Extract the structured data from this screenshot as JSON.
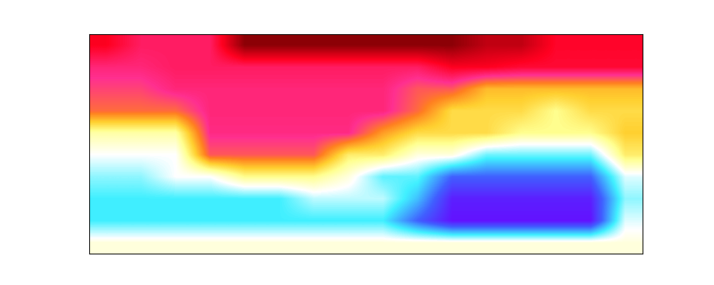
{
  "chart_data": {
    "type": "heatmap",
    "tick_labels": false,
    "cells": [
      [
        0.86,
        0.8,
        0.8,
        0.8,
        0.97,
        0.97,
        0.97,
        0.97,
        0.97,
        0.97,
        0.97,
        0.92,
        0.92,
        0.85,
        0.85,
        0.85
      ],
      [
        0.78,
        0.78,
        0.8,
        0.8,
        0.8,
        0.8,
        0.8,
        0.8,
        0.8,
        0.8,
        0.86,
        0.86,
        0.84,
        0.84,
        0.84,
        0.84
      ],
      [
        0.74,
        0.74,
        0.78,
        0.78,
        0.78,
        0.78,
        0.78,
        0.78,
        0.78,
        0.72,
        0.72,
        0.62,
        0.62,
        0.62,
        0.62,
        0.62
      ],
      [
        0.7,
        0.7,
        0.7,
        0.78,
        0.78,
        0.78,
        0.78,
        0.78,
        0.78,
        0.7,
        0.58,
        0.58,
        0.58,
        0.52,
        0.58,
        0.58
      ],
      [
        0.5,
        0.5,
        0.5,
        0.77,
        0.77,
        0.77,
        0.77,
        0.77,
        0.65,
        0.58,
        0.58,
        0.58,
        0.52,
        0.52,
        0.52,
        0.6
      ],
      [
        0.42,
        0.42,
        0.42,
        0.72,
        0.72,
        0.72,
        0.72,
        0.55,
        0.55,
        0.45,
        0.45,
        0.33,
        0.33,
        0.33,
        0.33,
        0.55
      ],
      [
        0.35,
        0.35,
        0.42,
        0.42,
        0.52,
        0.52,
        0.52,
        0.45,
        0.32,
        0.32,
        0.15,
        0.15,
        0.15,
        0.15,
        0.15,
        0.4
      ],
      [
        0.3,
        0.3,
        0.3,
        0.3,
        0.3,
        0.3,
        0.38,
        0.38,
        0.38,
        0.25,
        0.05,
        0.05,
        0.05,
        0.05,
        0.05,
        0.35
      ],
      [
        0.3,
        0.3,
        0.3,
        0.3,
        0.3,
        0.3,
        0.3,
        0.3,
        0.3,
        0.15,
        0.03,
        0.03,
        0.03,
        0.03,
        0.03,
        0.4
      ],
      [
        0.45,
        0.45,
        0.45,
        0.45,
        0.45,
        0.45,
        0.45,
        0.45,
        0.45,
        0.45,
        0.45,
        0.45,
        0.45,
        0.45,
        0.45,
        0.45
      ]
    ]
  }
}
